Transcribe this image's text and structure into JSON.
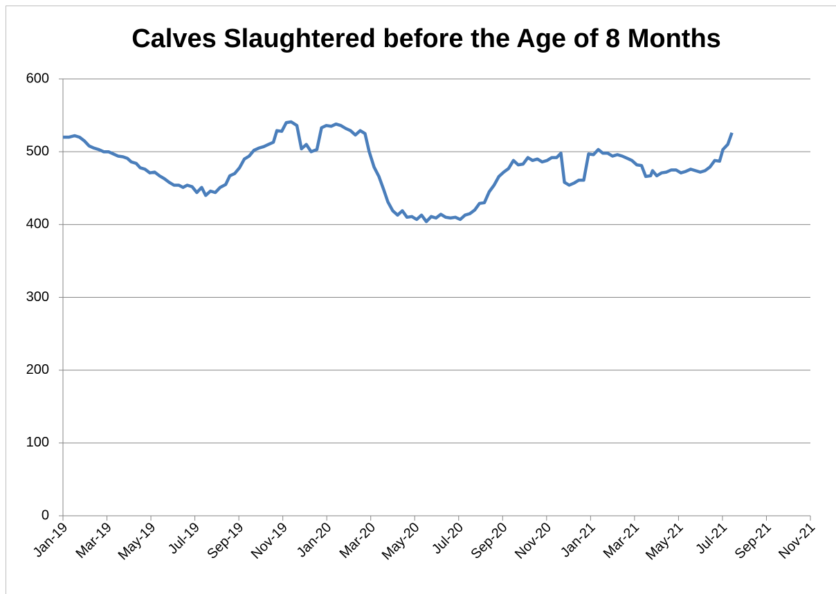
{
  "chart_data": {
    "type": "line",
    "title": "Calves Slaughtered before the Age of 8 Months",
    "xlim": [
      0,
      34
    ],
    "xticks": [
      {
        "value": 0,
        "label": "Jan-19"
      },
      {
        "value": 2,
        "label": "Mar-19"
      },
      {
        "value": 4,
        "label": "May-19"
      },
      {
        "value": 6,
        "label": "Jul-19"
      },
      {
        "value": 8,
        "label": "Sep-19"
      },
      {
        "value": 10,
        "label": "Nov-19"
      },
      {
        "value": 12,
        "label": "Jan-20"
      },
      {
        "value": 14,
        "label": "Mar-20"
      },
      {
        "value": 16,
        "label": "May-20"
      },
      {
        "value": 18,
        "label": "Jul-20"
      },
      {
        "value": 20,
        "label": "Sep-20"
      },
      {
        "value": 22,
        "label": "Nov-20"
      },
      {
        "value": 24,
        "label": "Jan-21"
      },
      {
        "value": 26,
        "label": "Mar-21"
      },
      {
        "value": 28,
        "label": "May-21"
      },
      {
        "value": 30,
        "label": "Jul-21"
      },
      {
        "value": 32,
        "label": "Sep-21"
      },
      {
        "value": 34,
        "label": "Nov-21"
      }
    ],
    "ylim": [
      0,
      600
    ],
    "yticks": [
      0,
      100,
      200,
      300,
      400,
      500,
      600
    ],
    "grid": true,
    "series": [
      {
        "color": "#4a7ebb",
        "x": [
          0,
          0.28,
          0.53,
          0.75,
          0.97,
          1.19,
          1.41,
          1.63,
          1.85,
          2.07,
          2.29,
          2.51,
          2.73,
          2.92,
          3.11,
          3.33,
          3.51,
          3.73,
          3.95,
          4.17,
          4.39,
          4.61,
          4.83,
          5.05,
          5.27,
          5.46,
          5.65,
          5.87,
          6.09,
          6.31,
          6.49,
          6.71,
          6.93,
          7.15,
          7.4,
          7.59,
          7.81,
          8.03,
          8.25,
          8.47,
          8.69,
          8.91,
          9.13,
          9.35,
          9.57,
          9.73,
          9.95,
          10.16,
          10.38,
          10.64,
          10.85,
          11.07,
          11.29,
          11.55,
          11.76,
          11.98,
          12.2,
          12.42,
          12.64,
          12.86,
          13.08,
          13.3,
          13.52,
          13.74,
          13.93,
          14.15,
          14.37,
          14.59,
          14.78,
          15.0,
          15.22,
          15.44,
          15.65,
          15.87,
          16.09,
          16.31,
          16.53,
          16.75,
          16.97,
          17.19,
          17.41,
          17.63,
          17.85,
          18.07,
          18.29,
          18.51,
          18.73,
          18.95,
          19.17,
          19.39,
          19.61,
          19.83,
          20.05,
          20.27,
          20.49,
          20.71,
          20.93,
          21.15,
          21.36,
          21.58,
          21.8,
          22.02,
          22.24,
          22.46,
          22.65,
          22.81,
          23.03,
          23.25,
          23.47,
          23.69,
          23.91,
          24.13,
          24.35,
          24.56,
          24.78,
          25.0,
          25.22,
          25.44,
          25.66,
          25.88,
          26.1,
          26.32,
          26.51,
          26.73,
          26.82,
          27.01,
          27.23,
          27.45,
          27.67,
          27.89,
          28.11,
          28.33,
          28.55,
          28.77,
          28.99,
          29.21,
          29.43,
          29.65,
          29.87,
          30.02,
          30.24,
          30.43
        ],
        "values": [
          520,
          520,
          522,
          520,
          515,
          508,
          505,
          503,
          500,
          500,
          497,
          494,
          493,
          491,
          486,
          484,
          478,
          476,
          471,
          472,
          467,
          463,
          458,
          454,
          454,
          451,
          454,
          452,
          444,
          451,
          440,
          446,
          444,
          451,
          455,
          467,
          470,
          478,
          490,
          494,
          502,
          505,
          507,
          510,
          513,
          529,
          528,
          540,
          541,
          536,
          504,
          510,
          500,
          503,
          533,
          536,
          535,
          538,
          536,
          532,
          529,
          523,
          529,
          525,
          500,
          479,
          466,
          448,
          431,
          419,
          413,
          419,
          410,
          411,
          407,
          413,
          404,
          411,
          409,
          414,
          410,
          409,
          410,
          407,
          413,
          415,
          420,
          429,
          430,
          445,
          454,
          466,
          472,
          477,
          488,
          482,
          483,
          492,
          488,
          490,
          486,
          488,
          492,
          492,
          498,
          458,
          454,
          457,
          461,
          461,
          497,
          496,
          503,
          498,
          498,
          494,
          496,
          494,
          491,
          488,
          482,
          481,
          466,
          467,
          474,
          467,
          471,
          472,
          475,
          475,
          471,
          473,
          476,
          474,
          472,
          474,
          479,
          488,
          487,
          503,
          510,
          526
        ]
      }
    ]
  }
}
